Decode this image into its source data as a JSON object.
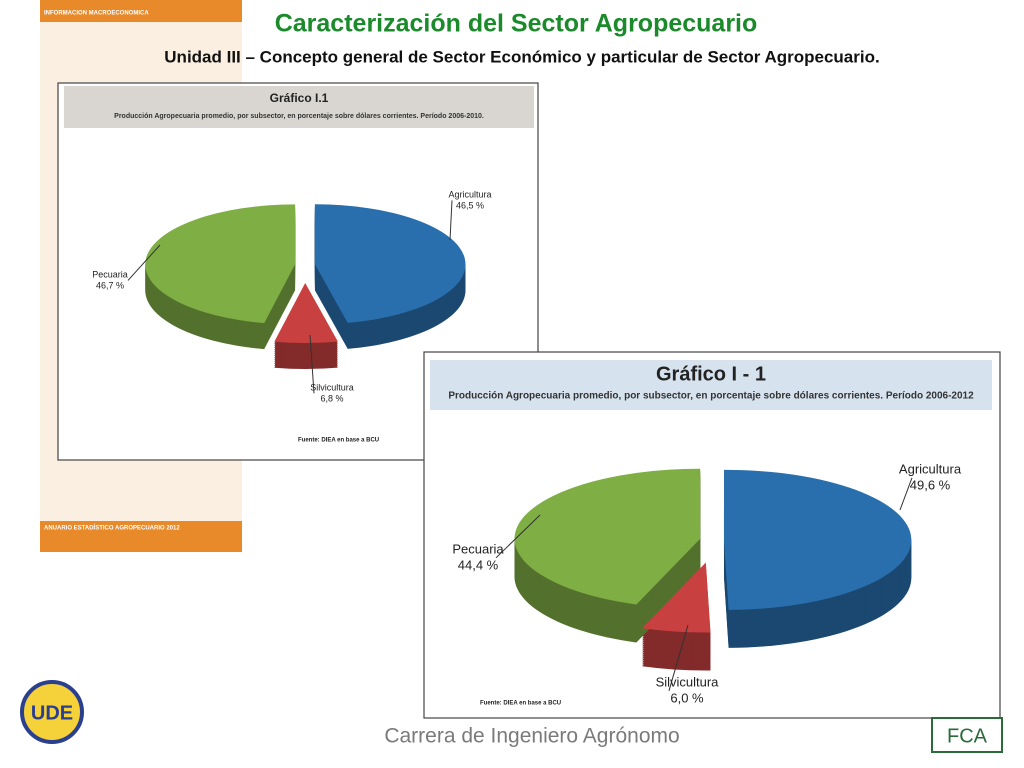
{
  "slide": {
    "title": "Caracterización del Sector Agropecuario",
    "subtitle": "Unidad III – Concepto general de Sector Económico y particular de Sector Agropecuario.",
    "footer": "Carrera de Ingeniero Agrónomo",
    "band_top": "INFORMACION MACROECONOMICA",
    "band_bottom": "ANUARIO ESTADÍSTICO AGROPECUARIO 2012",
    "logo_left": "UDE",
    "logo_right": "FCA"
  },
  "chart_data": [
    {
      "type": "pie",
      "title": "Gráfico I.1",
      "subtitle": "Producción Agropecuaria promedio, por subsector, en porcentaje sobre dólares corrientes. Período 2006-2010.",
      "source": "Fuente: DIEA en base a BCU",
      "categories": [
        "Agricultura",
        "Silvicultura",
        "Pecuaria"
      ],
      "values": [
        46.5,
        6.8,
        46.7
      ],
      "value_labels": [
        "46,5 %",
        "6,8 %",
        "46,7 %"
      ],
      "colors": [
        "#2a6fad",
        "#c94040",
        "#7fae45"
      ]
    },
    {
      "type": "pie",
      "title": "Gráfico I - 1",
      "subtitle": "Producción Agropecuaria promedio, por subsector, en porcentaje sobre dólares corrientes. Período 2006-2012",
      "source": "Fuente: DIEA en base a BCU",
      "categories": [
        "Agricultura",
        "Silvicultura",
        "Pecuaria"
      ],
      "values": [
        49.6,
        6.0,
        44.4
      ],
      "value_labels": [
        "49,6 %",
        "6,0 %",
        "44,4 %"
      ],
      "colors": [
        "#2a6fad",
        "#c94040",
        "#7fae45"
      ]
    }
  ]
}
